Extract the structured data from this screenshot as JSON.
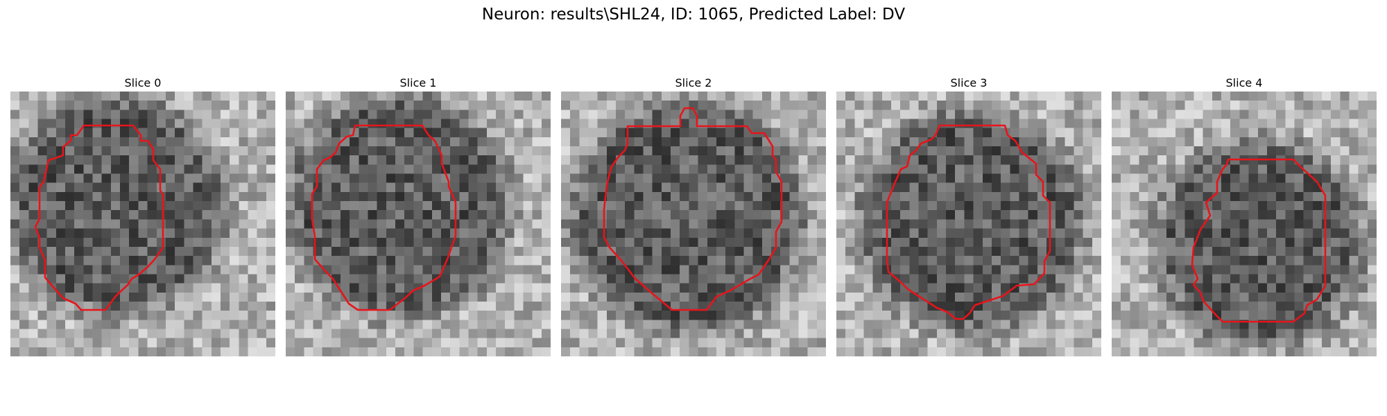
{
  "figure": {
    "title": "Neuron: results\\SHL24, ID: 1065, Predicted Label: DV"
  },
  "panels": [
    {
      "title": "Slice 0"
    },
    {
      "title": "Slice 1"
    },
    {
      "title": "Slice 2"
    },
    {
      "title": "Slice 3"
    },
    {
      "title": "Slice 4"
    }
  ],
  "style": {
    "contour_color": "#e8141b",
    "background_color": "#ffffff",
    "colormap": "gray"
  }
}
